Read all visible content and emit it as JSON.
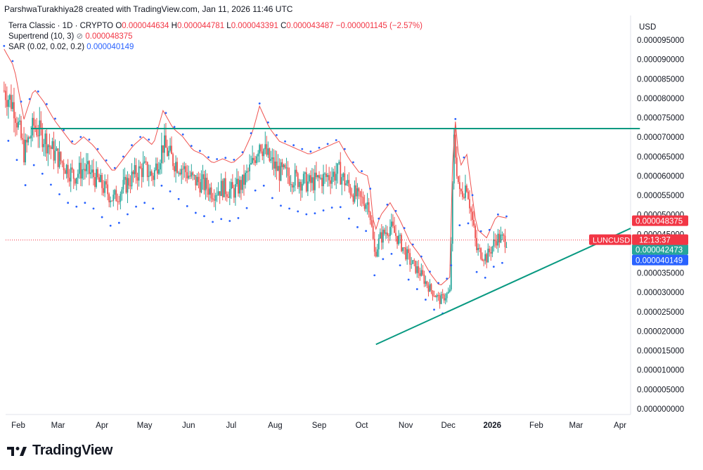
{
  "header": {
    "attribution": "ParshwaTurakhiya28 created with TradingView.com, Jan 11, 2026 11:46 UTC"
  },
  "legend": {
    "symbol": "Terra Classic · 1D · CRYPTO",
    "o_label": "O",
    "o_value": "0.000044634",
    "h_label": "H",
    "h_value": "0.000044781",
    "l_label": "L",
    "l_value": "0.000043391",
    "c_label": "C",
    "c_value": "0.000043487",
    "change": "−0.000001145 (−2.57%)",
    "supertrend_label": "Supertrend (10, 3)",
    "supertrend_value": "0.000048375",
    "sar_label": "SAR (0.02, 0.02, 0.2)",
    "sar_value": "0.000040149"
  },
  "footer": {
    "brand": "TradingView"
  },
  "colors": {
    "up": "#26a69a",
    "down": "#ef5350",
    "supertrend_down": "#ef5350",
    "supertrend_up": "#4caf50",
    "sar": "#2962ff",
    "trendline": "#089981",
    "price_line": "#f23645"
  },
  "chart_data": {
    "type": "candlestick",
    "currency": "USD",
    "y_ticks": [
      "0.000000000",
      "0.000005000",
      "0.000010000",
      "0.000015000",
      "0.000020000",
      "0.000025000",
      "0.000030000",
      "0.000035000",
      "0.000040000",
      "0.000045000",
      "0.000050000",
      "0.000055000",
      "0.000060000",
      "0.000065000",
      "0.000070000",
      "0.000075000",
      "0.000080000",
      "0.000085000",
      "0.000090000",
      "0.000095000"
    ],
    "ylim": [
      0,
      0.0001
    ],
    "x_ticks": [
      "Feb",
      "Mar",
      "Apr",
      "May",
      "Jun",
      "Jul",
      "Aug",
      "Sep",
      "Oct",
      "Nov",
      "Dec",
      "2026",
      "Feb",
      "Mar",
      "Apr"
    ],
    "x_tick_dates": [
      "2025-02-01",
      "2025-03-01",
      "2025-04-01",
      "2025-05-01",
      "2025-06-01",
      "2025-07-01",
      "2025-08-01",
      "2025-09-01",
      "2025-10-01",
      "2025-11-01",
      "2025-12-01",
      "2026-01-01",
      "2026-02-01",
      "2026-03-01",
      "2026-04-01"
    ],
    "series": [
      {
        "kind": "close",
        "points": [
          [
            "2025-01-22",
            8.2e-05
          ],
          [
            "2025-01-29",
            7.8e-05
          ],
          [
            "2025-02-05",
            6.6e-05
          ],
          [
            "2025-02-12",
            7.3e-05
          ],
          [
            "2025-02-19",
            7e-05
          ],
          [
            "2025-02-26",
            6.6e-05
          ],
          [
            "2025-03-05",
            6.3e-05
          ],
          [
            "2025-03-12",
            6e-05
          ],
          [
            "2025-03-19",
            6.2e-05
          ],
          [
            "2025-03-26",
            6e-05
          ],
          [
            "2025-04-02",
            5.7e-05
          ],
          [
            "2025-04-09",
            5.4e-05
          ],
          [
            "2025-04-16",
            5.7e-05
          ],
          [
            "2025-04-23",
            6e-05
          ],
          [
            "2025-04-30",
            6.2e-05
          ],
          [
            "2025-05-07",
            6e-05
          ],
          [
            "2025-05-14",
            6.8e-05
          ],
          [
            "2025-05-21",
            6.4e-05
          ],
          [
            "2025-05-28",
            6.2e-05
          ],
          [
            "2025-06-04",
            5.9e-05
          ],
          [
            "2025-06-11",
            5.8e-05
          ],
          [
            "2025-06-18",
            5.6e-05
          ],
          [
            "2025-06-25",
            5.7e-05
          ],
          [
            "2025-07-02",
            5.6e-05
          ],
          [
            "2025-07-09",
            5.8e-05
          ],
          [
            "2025-07-16",
            6.3e-05
          ],
          [
            "2025-07-21",
            6.9e-05
          ],
          [
            "2025-07-28",
            6.4e-05
          ],
          [
            "2025-08-04",
            6.1e-05
          ],
          [
            "2025-08-11",
            6e-05
          ],
          [
            "2025-08-18",
            5.9e-05
          ],
          [
            "2025-08-25",
            5.8e-05
          ],
          [
            "2025-09-01",
            5.9e-05
          ],
          [
            "2025-09-08",
            6e-05
          ],
          [
            "2025-09-15",
            6.1e-05
          ],
          [
            "2025-09-22",
            5.7e-05
          ],
          [
            "2025-09-29",
            5.4e-05
          ],
          [
            "2025-10-06",
            5.3e-05
          ],
          [
            "2025-10-10",
            4e-05
          ],
          [
            "2025-10-14",
            4.4e-05
          ],
          [
            "2025-10-21",
            4.7e-05
          ],
          [
            "2025-10-28",
            4.3e-05
          ],
          [
            "2025-11-04",
            3.8e-05
          ],
          [
            "2025-11-11",
            3.5e-05
          ],
          [
            "2025-11-18",
            3.1e-05
          ],
          [
            "2025-11-25",
            2.8e-05
          ],
          [
            "2025-12-02",
            3e-05
          ],
          [
            "2025-12-05",
            6.9e-05
          ],
          [
            "2025-12-09",
            5.5e-05
          ],
          [
            "2025-12-14",
            5.8e-05
          ],
          [
            "2025-12-21",
            4.1e-05
          ],
          [
            "2025-12-28",
            3.9e-05
          ],
          [
            "2026-01-04",
            4.4e-05
          ],
          [
            "2026-01-11",
            4.3487e-05
          ]
        ]
      },
      {
        "kind": "resistance_line",
        "value": 7.22e-05,
        "points": [
          [
            "2025-02-10",
            7.22e-05
          ],
          [
            "2026-04-15",
            7.22e-05
          ]
        ]
      },
      {
        "kind": "support_trendline",
        "points": [
          [
            "2025-10-11",
            1.66e-05
          ],
          [
            "2026-04-15",
            4.65e-05
          ]
        ]
      }
    ],
    "last_price": {
      "label": "LUNCUSD",
      "countdown": "12:13:37",
      "value": 4.3487e-05
    },
    "price_badges": [
      {
        "label": "0.000048375",
        "value": 4.8375e-05,
        "color": "#f23645"
      },
      {
        "label": "0.000042473",
        "value": 4.2473e-05,
        "color": "#26a69a"
      },
      {
        "label": "0.000040149",
        "value": 4.0149e-05,
        "color": "#2962ff"
      }
    ]
  }
}
